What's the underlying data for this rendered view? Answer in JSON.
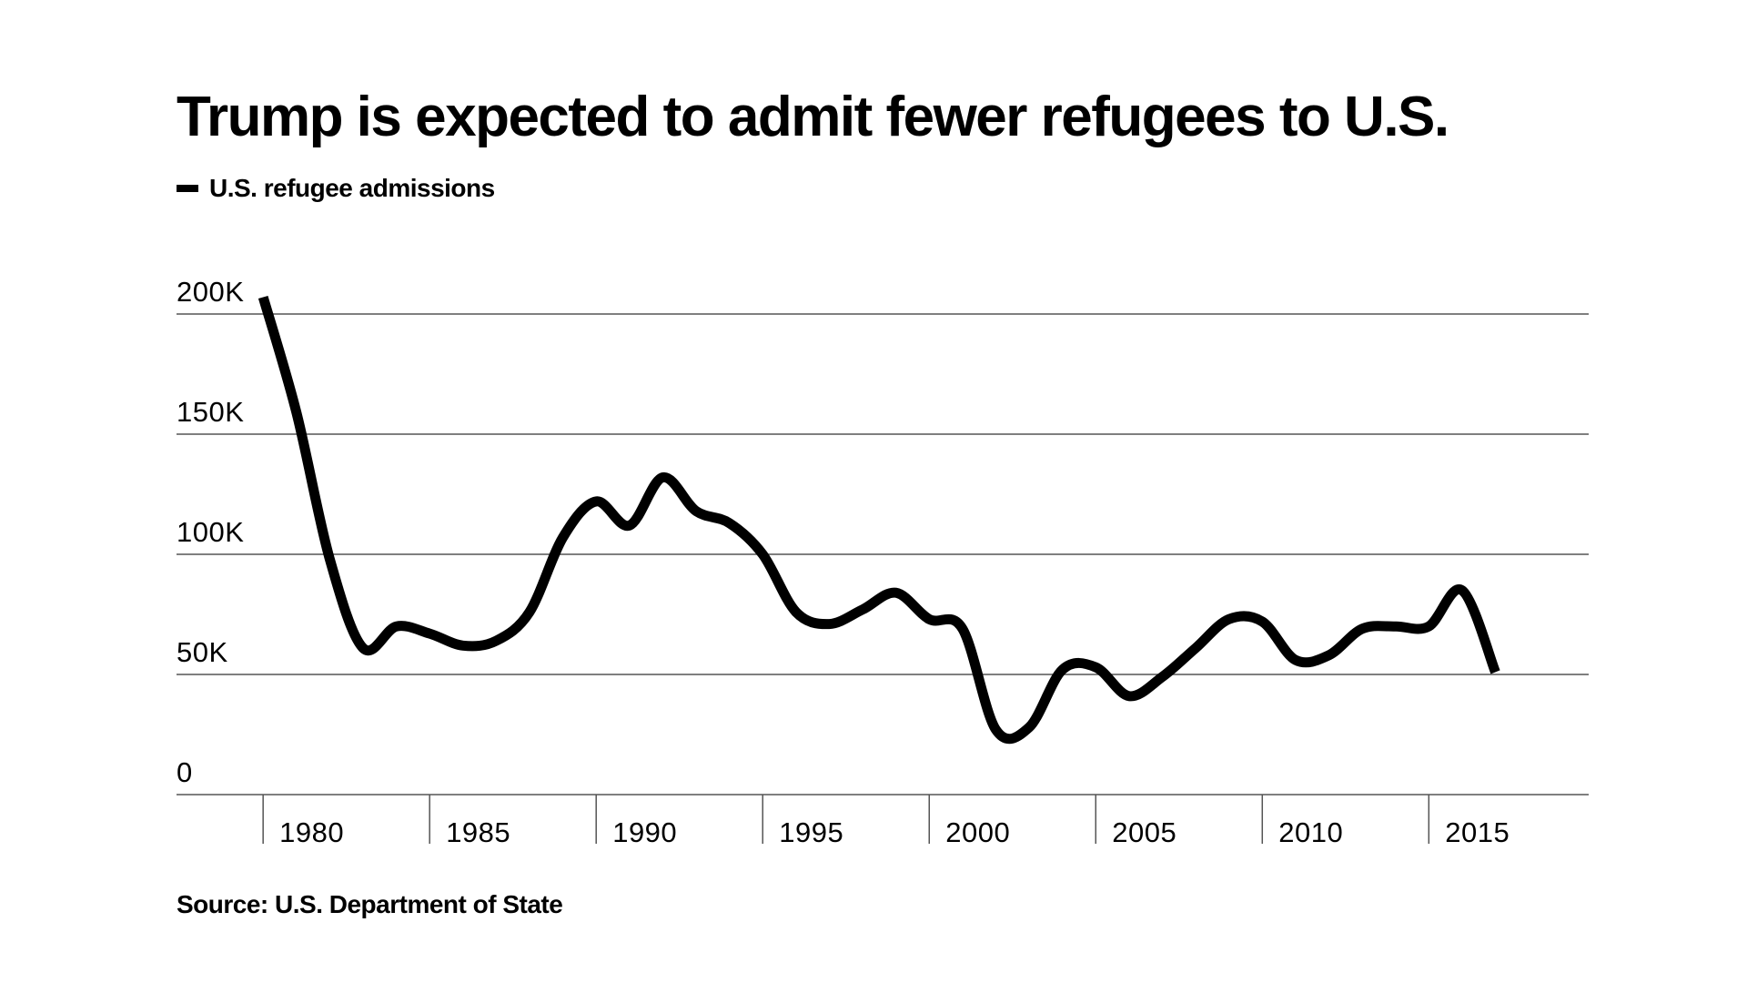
{
  "chart_data": {
    "type": "line",
    "title": "Trump is expected to admit fewer refugees to U.S.",
    "source": "Source: U.S. Department of State",
    "legend_position": "top-left",
    "grid": true,
    "xlim": [
      1977.4,
      2019.8
    ],
    "ylim": [
      0,
      200000
    ],
    "y_ticks": [
      {
        "value": 0,
        "label": "0"
      },
      {
        "value": 50000,
        "label": "50K"
      },
      {
        "value": 100000,
        "label": "100K"
      },
      {
        "value": 150000,
        "label": "150K"
      },
      {
        "value": 200000,
        "label": "200K"
      }
    ],
    "x_ticks": [
      {
        "value": 1980,
        "label": "1980"
      },
      {
        "value": 1985,
        "label": "1985"
      },
      {
        "value": 1990,
        "label": "1990"
      },
      {
        "value": 1995,
        "label": "1995"
      },
      {
        "value": 2000,
        "label": "2000"
      },
      {
        "value": 2005,
        "label": "2005"
      },
      {
        "value": 2010,
        "label": "2010"
      },
      {
        "value": 2015,
        "label": "2015"
      }
    ],
    "series": [
      {
        "name": "U.S. refugee admissions",
        "color": "#000000",
        "x": [
          1980,
          1981,
          1982,
          1983,
          1984,
          1985,
          1986,
          1987,
          1988,
          1989,
          1990,
          1991,
          1992,
          1993,
          1994,
          1995,
          1996,
          1997,
          1998,
          1999,
          2000,
          2001,
          2002,
          2003,
          2004,
          2005,
          2006,
          2007,
          2008,
          2009,
          2010,
          2011,
          2012,
          2013,
          2014,
          2015,
          2016,
          2017
        ],
        "y": [
          207000,
          159000,
          98000,
          61000,
          70000,
          67000,
          62000,
          64000,
          76000,
          107000,
          122000,
          112000,
          132000,
          118000,
          113000,
          100000,
          76000,
          71000,
          77000,
          84000,
          73000,
          69000,
          27000,
          28000,
          52000,
          53000,
          41000,
          49000,
          61000,
          73000,
          72000,
          56000,
          58000,
          69000,
          70000,
          70000,
          85000,
          51000
        ]
      }
    ]
  }
}
